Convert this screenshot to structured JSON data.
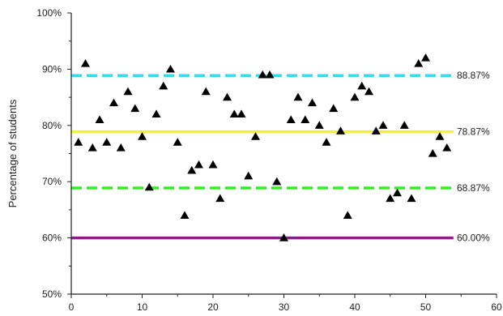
{
  "chart_data": {
    "type": "scatter",
    "title": "",
    "xlabel": "",
    "ylabel": "Percentage of students",
    "xlim": [
      0,
      60
    ],
    "ylim": [
      50,
      100
    ],
    "x_ticks": [
      0,
      10,
      20,
      30,
      40,
      50,
      60
    ],
    "x_tick_labels": [
      "0",
      "10",
      "20",
      "30",
      "40",
      "50",
      "60"
    ],
    "y_ticks": [
      50,
      60,
      70,
      80,
      90,
      100
    ],
    "y_tick_labels": [
      "50%",
      "60%",
      "70%",
      "80%",
      "90%",
      "100%"
    ],
    "grid": false,
    "marker": "triangle-up",
    "marker_color": "#000000",
    "points": [
      {
        "x": 1,
        "y": 77
      },
      {
        "x": 2,
        "y": 91
      },
      {
        "x": 3,
        "y": 76
      },
      {
        "x": 4,
        "y": 81
      },
      {
        "x": 5,
        "y": 77
      },
      {
        "x": 6,
        "y": 84
      },
      {
        "x": 7,
        "y": 76
      },
      {
        "x": 8,
        "y": 86
      },
      {
        "x": 9,
        "y": 83
      },
      {
        "x": 10,
        "y": 78
      },
      {
        "x": 11,
        "y": 69
      },
      {
        "x": 12,
        "y": 82
      },
      {
        "x": 13,
        "y": 87
      },
      {
        "x": 14,
        "y": 90
      },
      {
        "x": 15,
        "y": 77
      },
      {
        "x": 16,
        "y": 64
      },
      {
        "x": 17,
        "y": 72
      },
      {
        "x": 18,
        "y": 73
      },
      {
        "x": 19,
        "y": 86
      },
      {
        "x": 20,
        "y": 73
      },
      {
        "x": 21,
        "y": 67
      },
      {
        "x": 22,
        "y": 85
      },
      {
        "x": 23,
        "y": 82
      },
      {
        "x": 24,
        "y": 82
      },
      {
        "x": 25,
        "y": 71
      },
      {
        "x": 26,
        "y": 78
      },
      {
        "x": 27,
        "y": 89
      },
      {
        "x": 28,
        "y": 89
      },
      {
        "x": 29,
        "y": 70
      },
      {
        "x": 30,
        "y": 60
      },
      {
        "x": 31,
        "y": 81
      },
      {
        "x": 32,
        "y": 85
      },
      {
        "x": 33,
        "y": 81
      },
      {
        "x": 34,
        "y": 84
      },
      {
        "x": 35,
        "y": 80
      },
      {
        "x": 36,
        "y": 77
      },
      {
        "x": 37,
        "y": 83
      },
      {
        "x": 38,
        "y": 79
      },
      {
        "x": 39,
        "y": 64
      },
      {
        "x": 40,
        "y": 85
      },
      {
        "x": 41,
        "y": 87
      },
      {
        "x": 42,
        "y": 86
      },
      {
        "x": 43,
        "y": 79
      },
      {
        "x": 44,
        "y": 80
      },
      {
        "x": 45,
        "y": 67
      },
      {
        "x": 46,
        "y": 68
      },
      {
        "x": 47,
        "y": 80
      },
      {
        "x": 48,
        "y": 67
      },
      {
        "x": 49,
        "y": 91
      },
      {
        "x": 50,
        "y": 92
      },
      {
        "x": 51,
        "y": 75
      },
      {
        "x": 52,
        "y": 78
      },
      {
        "x": 53,
        "y": 76
      }
    ],
    "reference_lines": [
      {
        "value": 88.87,
        "label": "88.87%",
        "color": "#33DDEE",
        "style": "dashed"
      },
      {
        "value": 78.87,
        "label": "78.87%",
        "color": "#F2F230",
        "style": "solid"
      },
      {
        "value": 68.87,
        "label": "68.87%",
        "color": "#33EE22",
        "style": "dashed"
      },
      {
        "value": 60.0,
        "label": "60.00%",
        "color": "#8B1A8B",
        "style": "solid"
      }
    ],
    "reference_x_range": [
      0,
      53
    ]
  }
}
